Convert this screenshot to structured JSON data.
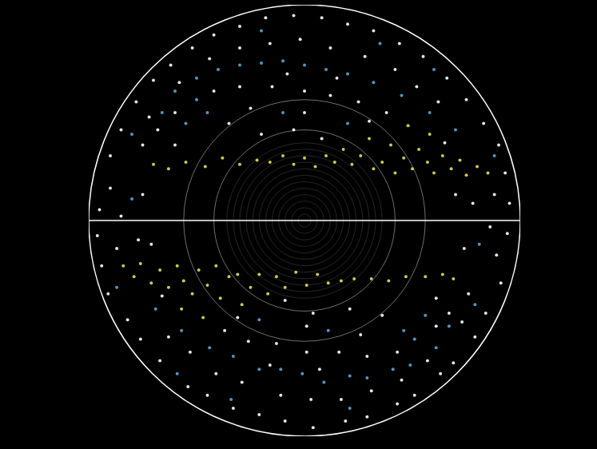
{
  "chart_data": {
    "type": "scatter",
    "xlim": [
      -1,
      1
    ],
    "ylim": [
      -1,
      1
    ],
    "grid": false,
    "tick_labels": false,
    "series": [
      {
        "color": "#ffffff",
        "marker": "dot",
        "x": [
          -0.9,
          -0.85,
          -0.78,
          -0.7,
          -0.62,
          -0.52,
          -0.42,
          -0.3,
          -0.18,
          -0.05,
          0.08,
          0.2,
          0.32,
          0.44,
          0.55,
          0.66,
          0.75,
          0.83,
          0.9,
          0.93,
          -0.75,
          -0.68,
          -0.6,
          -0.42,
          -0.3,
          -0.15,
          0.0,
          0.12,
          0.25,
          0.38,
          0.52,
          0.42,
          0.28,
          0.12,
          -0.02,
          -0.16,
          -0.3,
          -0.44,
          -0.58,
          -0.72,
          -0.35,
          -0.2,
          -0.05,
          0.08,
          0.3,
          -0.6,
          -0.9,
          -0.95,
          -0.85,
          -0.75,
          0.7,
          0.78,
          0.88,
          0.95,
          0.62,
          0.0,
          -0.25,
          0.15,
          -0.08,
          0.65,
          0.91,
          0.84,
          0.79,
          0.69,
          0.63,
          0.51,
          0.43,
          0.29,
          0.19,
          0.04,
          -0.09,
          -0.21,
          -0.33,
          -0.45,
          -0.54,
          -0.67,
          -0.76,
          -0.82,
          -0.91,
          -0.94,
          0.76,
          0.67,
          0.61,
          0.43,
          0.29,
          0.16,
          0.01,
          -0.13,
          -0.26,
          -0.37,
          -0.53,
          -0.41,
          -0.29,
          -0.11,
          0.03,
          0.17,
          0.31,
          0.45,
          0.57,
          0.73,
          0.36,
          0.21,
          0.04,
          -0.09,
          -0.31,
          0.61,
          0.89,
          0.94,
          0.86,
          0.74,
          -0.71,
          -0.77,
          -0.87,
          -0.96,
          -0.63,
          0.01,
          0.26,
          -0.16,
          0.07,
          -0.66
        ],
        "y": [
          0.3,
          0.42,
          0.55,
          0.65,
          0.72,
          0.8,
          0.86,
          0.9,
          0.94,
          0.95,
          0.94,
          0.91,
          0.88,
          0.82,
          0.76,
          0.66,
          0.56,
          0.45,
          0.35,
          0.22,
          0.35,
          0.42,
          0.5,
          0.6,
          0.62,
          0.62,
          0.6,
          0.58,
          0.55,
          0.5,
          0.62,
          0.7,
          0.76,
          0.8,
          0.84,
          0.82,
          0.8,
          0.75,
          0.64,
          0.48,
          0.45,
          0.4,
          0.42,
          0.38,
          0.46,
          0.35,
          0.15,
          0.05,
          0.02,
          0.12,
          0.12,
          0.08,
          0.12,
          0.08,
          0.55,
          0.5,
          0.52,
          0.66,
          0.68,
          0.36,
          -0.29,
          -0.43,
          -0.54,
          -0.66,
          -0.71,
          -0.81,
          -0.85,
          -0.91,
          -0.93,
          -0.96,
          -0.93,
          -0.9,
          -0.87,
          -0.81,
          -0.77,
          -0.65,
          -0.55,
          -0.46,
          -0.34,
          -0.21,
          -0.34,
          -0.43,
          -0.49,
          -0.61,
          -0.63,
          -0.61,
          -0.61,
          -0.57,
          -0.56,
          -0.51,
          -0.61,
          -0.71,
          -0.75,
          -0.81,
          -0.83,
          -0.83,
          -0.79,
          -0.74,
          -0.65,
          -0.47,
          -0.44,
          -0.41,
          -0.43,
          -0.37,
          -0.45,
          -0.36,
          -0.16,
          -0.06,
          -0.03,
          -0.13,
          -0.11,
          -0.09,
          -0.13,
          -0.07,
          -0.54,
          -0.49,
          -0.53,
          -0.67,
          -0.69,
          -0.35
        ]
      },
      {
        "color": "#5aa9d6",
        "marker": "dot",
        "x": [
          -0.6,
          -0.5,
          -0.4,
          -0.3,
          -0.2,
          -0.1,
          0.0,
          0.1,
          0.2,
          0.32,
          0.45,
          0.58,
          0.7,
          -0.66,
          -0.55,
          -0.45,
          -0.5,
          0.35,
          -0.2,
          0.6,
          -0.8,
          0.88,
          0.2,
          -0.1,
          -0.8,
          0.61,
          0.49,
          0.41,
          0.29,
          0.21,
          0.09,
          -0.01,
          -0.11,
          -0.21,
          -0.33,
          -0.44,
          -0.57,
          -0.69,
          0.67,
          0.56,
          0.46,
          0.51,
          -0.34,
          0.21,
          -0.59,
          0.79,
          -0.87,
          -0.21,
          0.11,
          0.81
        ],
        "y": [
          0.6,
          0.66,
          0.7,
          0.72,
          0.73,
          0.74,
          0.72,
          0.7,
          0.68,
          0.64,
          0.58,
          0.5,
          0.42,
          0.5,
          0.45,
          0.5,
          0.56,
          0.82,
          0.88,
          0.7,
          0.4,
          0.3,
          0.45,
          0.5,
          0.1,
          -0.59,
          -0.67,
          -0.69,
          -0.73,
          -0.72,
          -0.75,
          -0.71,
          -0.69,
          -0.69,
          -0.63,
          -0.59,
          -0.51,
          -0.41,
          -0.49,
          -0.44,
          -0.51,
          -0.55,
          -0.83,
          -0.87,
          -0.71,
          -0.39,
          -0.31,
          -0.46,
          -0.51,
          -0.11
        ]
      },
      {
        "color": "#e6e05a",
        "marker": "dot",
        "x": [
          0.85,
          0.8,
          0.75,
          0.72,
          0.68,
          0.64,
          0.6,
          0.57,
          0.53,
          0.5,
          0.46,
          0.42,
          0.4,
          0.36,
          0.32,
          0.3,
          0.26,
          0.22,
          0.18,
          0.14,
          0.1,
          0.05,
          0.0,
          -0.05,
          -0.1,
          -0.16,
          -0.22,
          -0.3,
          -0.38,
          -0.46,
          -0.55,
          -0.63,
          -0.7,
          0.58,
          0.48,
          -0.84,
          -0.79,
          -0.76,
          -0.71,
          -0.67,
          -0.63,
          -0.59,
          -0.56,
          -0.52,
          -0.49,
          -0.45,
          -0.41,
          -0.39,
          -0.35,
          -0.31,
          -0.29,
          -0.25,
          -0.21,
          -0.17,
          -0.13,
          -0.09,
          -0.04,
          0.01,
          0.06,
          0.11,
          0.17,
          0.23,
          0.31,
          0.39,
          0.47,
          0.56,
          0.64,
          0.69,
          -0.57,
          -0.47
        ],
        "y": [
          0.22,
          0.25,
          0.21,
          0.28,
          0.24,
          0.3,
          0.22,
          0.27,
          0.33,
          0.24,
          0.29,
          0.22,
          0.35,
          0.27,
          0.24,
          0.38,
          0.3,
          0.26,
          0.33,
          0.27,
          0.3,
          0.25,
          0.29,
          0.26,
          0.3,
          0.27,
          0.28,
          0.26,
          0.29,
          0.25,
          0.27,
          0.24,
          0.26,
          0.4,
          0.44,
          -0.21,
          -0.26,
          -0.2,
          -0.29,
          -0.23,
          -0.31,
          -0.21,
          -0.28,
          -0.34,
          -0.23,
          -0.3,
          -0.21,
          -0.36,
          -0.26,
          -0.25,
          -0.39,
          -0.31,
          -0.25,
          -0.34,
          -0.26,
          -0.31,
          -0.24,
          -0.3,
          -0.25,
          -0.29,
          -0.28,
          -0.27,
          -0.27,
          -0.28,
          -0.26,
          -0.26,
          -0.25,
          -0.27,
          -0.41,
          -0.45
        ]
      }
    ]
  }
}
